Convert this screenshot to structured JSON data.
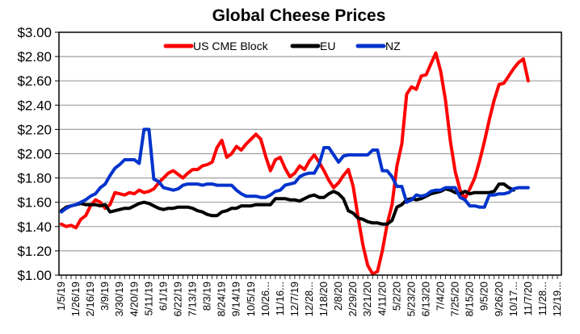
{
  "chart_data": {
    "type": "line",
    "title": "Global Cheese Prices",
    "xlabel": "",
    "ylabel": "",
    "ylim": [
      1.0,
      3.0
    ],
    "yticks": [
      "$1.00",
      "$1.20",
      "$1.40",
      "$1.60",
      "$1.80",
      "$2.00",
      "$2.20",
      "$2.40",
      "$2.60",
      "$2.80",
      "$3.00"
    ],
    "ytick_values": [
      1.0,
      1.2,
      1.4,
      1.6,
      1.8,
      2.0,
      2.2,
      2.4,
      2.6,
      2.8,
      3.0
    ],
    "grid": true,
    "legend_position": "top-center",
    "x_unit": "week index from 1/5/19",
    "x_tick_labels": [
      "1/5/19",
      "1/26/19",
      "2/16/19",
      "3/9/19",
      "3/30/19",
      "4/20/19",
      "5/11/19",
      "6/1/19",
      "6/22/19",
      "7/13/19",
      "8/3/19",
      "8/24/19",
      "9/14/19",
      "10/5/19",
      "10/26...",
      "11/16...",
      "12/7/19",
      "12/28...",
      "1/18/20",
      "2/8/20",
      "2/29/20",
      "3/21/20",
      "4/11/20",
      "5/2/20",
      "5/23/20",
      "6/13/20",
      "7/4/20",
      "7/25/20",
      "8/15/20",
      "9/5/20",
      "9/26/20",
      "10/17...",
      "11/7/20",
      "11/28...",
      "12/19..."
    ],
    "x_tick_step_weeks": 3,
    "x_range_weeks": [
      0,
      102
    ],
    "series": [
      {
        "name": "US CME Block",
        "color": "#ff0000",
        "values": [
          1.42,
          1.4,
          1.41,
          1.39,
          1.46,
          1.49,
          1.57,
          1.62,
          1.6,
          1.55,
          1.58,
          1.68,
          1.67,
          1.66,
          1.68,
          1.67,
          1.7,
          1.68,
          1.69,
          1.71,
          1.76,
          1.8,
          1.84,
          1.86,
          1.83,
          1.8,
          1.84,
          1.87,
          1.87,
          1.9,
          1.91,
          1.93,
          2.05,
          2.11,
          1.97,
          2.0,
          2.06,
          2.03,
          2.08,
          2.12,
          2.16,
          2.12,
          1.98,
          1.86,
          1.95,
          1.97,
          1.88,
          1.81,
          1.84,
          1.9,
          1.87,
          1.94,
          1.99,
          1.93,
          1.86,
          1.78,
          1.72,
          1.76,
          1.82,
          1.87,
          1.73,
          1.48,
          1.25,
          1.08,
          1.01,
          1.03,
          1.2,
          1.42,
          1.58,
          1.9,
          2.08,
          2.49,
          2.55,
          2.53,
          2.64,
          2.65,
          2.74,
          2.83,
          2.68,
          2.44,
          2.1,
          1.85,
          1.7,
          1.63,
          1.71,
          1.8,
          1.94,
          2.1,
          2.28,
          2.44,
          2.57,
          2.58,
          2.64,
          2.7,
          2.75,
          2.78,
          2.6
        ],
        "week_offset": 0
      },
      {
        "name": "EU",
        "color": "#000000",
        "values": [
          1.53,
          1.56,
          1.57,
          1.58,
          1.59,
          1.58,
          1.58,
          1.58,
          1.57,
          1.58,
          1.52,
          1.53,
          1.54,
          1.55,
          1.55,
          1.57,
          1.59,
          1.6,
          1.59,
          1.57,
          1.55,
          1.54,
          1.55,
          1.55,
          1.56,
          1.56,
          1.56,
          1.55,
          1.53,
          1.52,
          1.5,
          1.49,
          1.49,
          1.52,
          1.53,
          1.55,
          1.55,
          1.57,
          1.57,
          1.57,
          1.58,
          1.58,
          1.58,
          1.58,
          1.63,
          1.63,
          1.63,
          1.62,
          1.62,
          1.61,
          1.63,
          1.65,
          1.66,
          1.64,
          1.64,
          1.67,
          1.69,
          1.67,
          1.63,
          1.53,
          1.51,
          1.47,
          1.46,
          1.44,
          1.43,
          1.43,
          1.42,
          1.42,
          1.45,
          1.56,
          1.58,
          1.62,
          1.63,
          1.62,
          1.63,
          1.65,
          1.67,
          1.68,
          1.69,
          1.71,
          1.7,
          1.68,
          1.67,
          1.69,
          1.67,
          1.68,
          1.68,
          1.68,
          1.68,
          1.69,
          1.75,
          1.75,
          1.72,
          1.7
        ],
        "week_offset": 0
      },
      {
        "name": "NZ",
        "color": "#0033cc",
        "values": [
          1.52,
          1.55,
          1.57,
          1.58,
          1.6,
          1.62,
          1.65,
          1.67,
          1.72,
          1.75,
          1.82,
          1.88,
          1.91,
          1.95,
          1.95,
          1.95,
          1.92,
          2.2,
          2.2,
          1.79,
          1.77,
          1.72,
          1.71,
          1.7,
          1.71,
          1.74,
          1.75,
          1.75,
          1.75,
          1.74,
          1.75,
          1.75,
          1.74,
          1.74,
          1.74,
          1.74,
          1.7,
          1.67,
          1.65,
          1.65,
          1.65,
          1.64,
          1.64,
          1.66,
          1.69,
          1.7,
          1.74,
          1.75,
          1.76,
          1.81,
          1.83,
          1.84,
          1.84,
          1.91,
          2.05,
          2.05,
          1.99,
          1.93,
          1.98,
          1.99,
          1.99,
          1.99,
          1.99,
          1.99,
          2.03,
          2.03,
          1.86,
          1.86,
          1.81,
          1.73,
          1.73,
          1.6,
          1.62,
          1.66,
          1.65,
          1.66,
          1.69,
          1.7,
          1.7,
          1.72,
          1.72,
          1.72,
          1.64,
          1.62,
          1.57,
          1.57,
          1.56,
          1.56,
          1.66,
          1.66,
          1.67,
          1.67,
          1.68,
          1.71,
          1.72,
          1.72,
          1.72
        ],
        "week_offset": 0
      }
    ]
  }
}
